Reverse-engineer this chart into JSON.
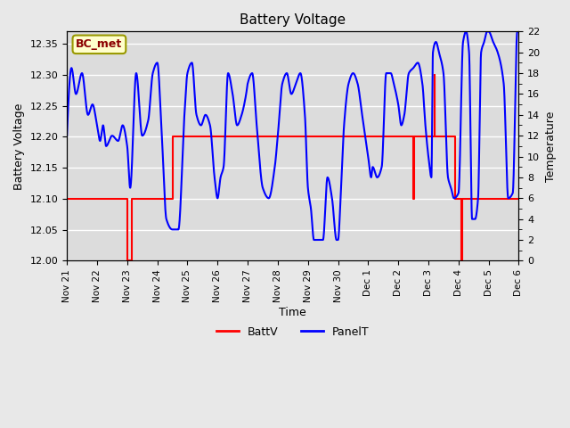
{
  "title": "Battery Voltage",
  "xlabel": "Time",
  "ylabel_left": "Battery Voltage",
  "ylabel_right": "Temperature",
  "annotation": "BC_met",
  "annotation_color": "#8B0000",
  "annotation_bg": "#FFFFCC",
  "annotation_border": "#999900",
  "left_ylim": [
    12.0,
    12.37
  ],
  "right_ylim": [
    0,
    22
  ],
  "left_yticks": [
    12.0,
    12.05,
    12.1,
    12.15,
    12.2,
    12.25,
    12.3,
    12.35
  ],
  "right_yticks": [
    0,
    2,
    4,
    6,
    8,
    10,
    12,
    14,
    16,
    18,
    20,
    22
  ],
  "xtick_labels": [
    "Nov 21",
    "Nov 22",
    "Nov 23",
    "Nov 24",
    "Nov 25",
    "Nov 26",
    "Nov 27",
    "Nov 28",
    "Nov 29",
    "Nov 30",
    "Dec 1",
    "Dec 2",
    "Dec 3",
    "Dec 4",
    "Dec 5",
    "Dec 6"
  ],
  "batt_color": "#FF0000",
  "panel_color": "#0000FF",
  "legend_labels": [
    "BattV",
    "PanelT"
  ],
  "background_color": "#E8E8E8",
  "plot_bg_color": "#DCDCDC",
  "grid_color": "#FFFFFF",
  "batt_lw": 1.5,
  "panel_lw": 1.5
}
